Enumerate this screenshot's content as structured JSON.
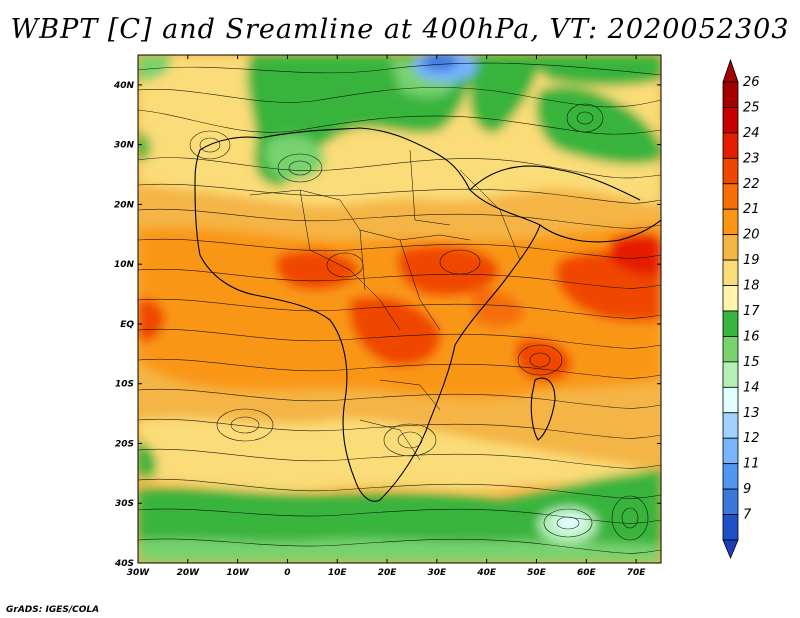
{
  "title": "WBPT [C] and Sreamline at 400hPa, VT: 2020052303",
  "credit": "GrADS: IGES/COLA",
  "map": {
    "lon_range": [
      -30,
      75
    ],
    "lat_range": [
      -40,
      45
    ],
    "lon_ticks": [
      {
        "value": -30,
        "label": "30W"
      },
      {
        "value": -20,
        "label": "20W"
      },
      {
        "value": -10,
        "label": "10W"
      },
      {
        "value": 0,
        "label": "0"
      },
      {
        "value": 10,
        "label": "10E"
      },
      {
        "value": 20,
        "label": "20E"
      },
      {
        "value": 30,
        "label": "30E"
      },
      {
        "value": 40,
        "label": "40E"
      },
      {
        "value": 50,
        "label": "50E"
      },
      {
        "value": 60,
        "label": "60E"
      },
      {
        "value": 70,
        "label": "70E"
      }
    ],
    "lat_ticks": [
      {
        "value": 40,
        "label": "40N"
      },
      {
        "value": 30,
        "label": "30N"
      },
      {
        "value": 20,
        "label": "20N"
      },
      {
        "value": 10,
        "label": "10N"
      },
      {
        "value": 0,
        "label": "EQ"
      },
      {
        "value": -10,
        "label": "10S"
      },
      {
        "value": -20,
        "label": "20S"
      },
      {
        "value": -30,
        "label": "30S"
      },
      {
        "value": -40,
        "label": "40S"
      }
    ]
  },
  "colorbar": {
    "levels": [
      {
        "label": "26",
        "color": "#a50000"
      },
      {
        "label": "25",
        "color": "#c80000"
      },
      {
        "label": "24",
        "color": "#e61e00"
      },
      {
        "label": "23",
        "color": "#f04600"
      },
      {
        "label": "22",
        "color": "#f56e0a"
      },
      {
        "label": "21",
        "color": "#fa9614"
      },
      {
        "label": "20",
        "color": "#f5b446"
      },
      {
        "label": "19",
        "color": "#fadc78"
      },
      {
        "label": "18",
        "color": "#fff5aa"
      },
      {
        "label": "17",
        "color": "#37b43c"
      },
      {
        "label": "16",
        "color": "#78d26e"
      },
      {
        "label": "15",
        "color": "#b4f0b4"
      },
      {
        "label": "14",
        "color": "#e1ffff"
      },
      {
        "label": "13",
        "color": "#a0d2ff"
      },
      {
        "label": "12",
        "color": "#78b4ff"
      },
      {
        "label": "11",
        "color": "#5096f0"
      },
      {
        "label": "9",
        "color": "#3c78dc"
      },
      {
        "label": "7",
        "color": "#1e50c8"
      }
    ],
    "bottom_color": "#1e3cb4"
  }
}
